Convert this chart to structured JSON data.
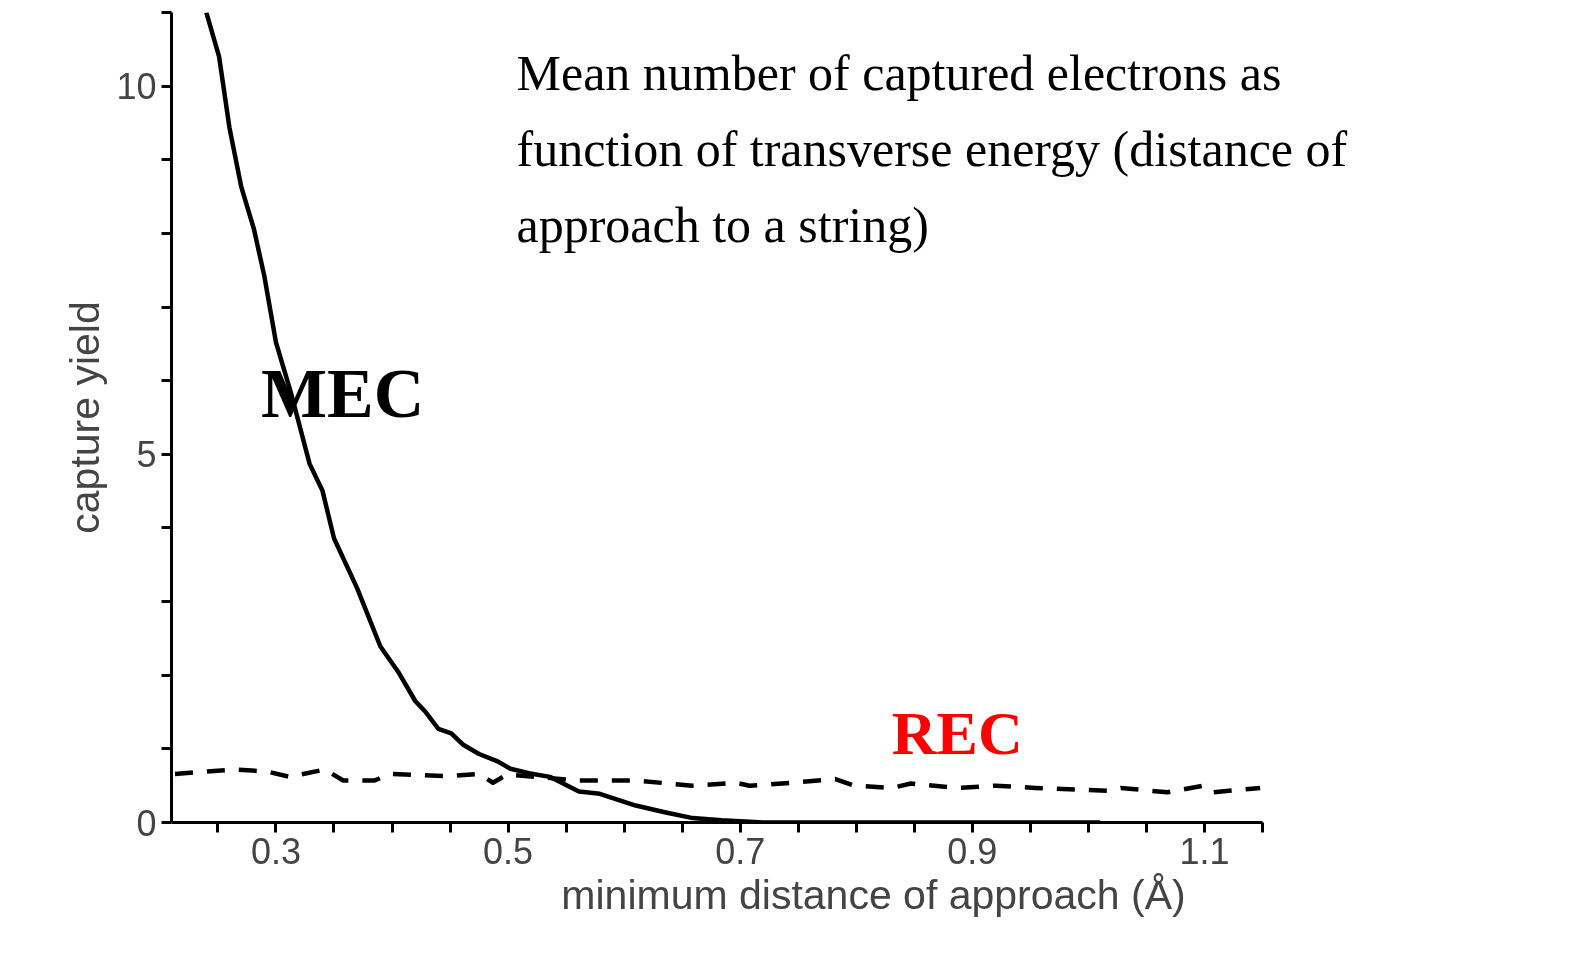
{
  "chart_data": {
    "type": "line",
    "title": "Mean number of captured electrons as function of transverse energy (distance of approach to a string)",
    "xlabel": "minimum distance of approach (Å)",
    "ylabel": "capture yield",
    "xlim": [
      0.21,
      1.15
    ],
    "ylim": [
      0,
      11
    ],
    "xticks": [
      {
        "value": 0.25,
        "label": null
      },
      0.3,
      {
        "value": 0.35,
        "label": null
      },
      {
        "value": 0.4,
        "label": null
      },
      {
        "value": 0.45,
        "label": null
      },
      0.5,
      {
        "value": 0.55,
        "label": null
      },
      {
        "value": 0.6,
        "label": null
      },
      {
        "value": 0.65,
        "label": null
      },
      0.7,
      {
        "value": 0.75,
        "label": null
      },
      {
        "value": 0.8,
        "label": null
      },
      {
        "value": 0.85,
        "label": null
      },
      0.9,
      {
        "value": 0.95,
        "label": null
      },
      {
        "value": 1.0,
        "label": null
      },
      {
        "value": 1.05,
        "label": null
      },
      1.1,
      {
        "value": 1.15,
        "label": null
      }
    ],
    "yticks": [
      0,
      {
        "value": 1,
        "label": null
      },
      {
        "value": 2,
        "label": null
      },
      {
        "value": 3,
        "label": null
      },
      {
        "value": 4,
        "label": null
      },
      5,
      {
        "value": 6,
        "label": null
      },
      {
        "value": 7,
        "label": null
      },
      {
        "value": 8,
        "label": null
      },
      {
        "value": 9,
        "label": null
      },
      10,
      {
        "value": 11,
        "label": null
      }
    ],
    "grid": false,
    "series": [
      {
        "name": "MEC",
        "color": "#000000",
        "line_style": "solid",
        "x": [
          0.24,
          0.251,
          0.26,
          0.27,
          0.281,
          0.29,
          0.3,
          0.313,
          0.329,
          0.34,
          0.35,
          0.37,
          0.39,
          0.406,
          0.42,
          0.429,
          0.44,
          0.451,
          0.461,
          0.475,
          0.491,
          0.502,
          0.518,
          0.536,
          0.561,
          0.579,
          0.61,
          0.635,
          0.659,
          0.684,
          0.72,
          1.01
        ],
        "values": [
          11.0,
          10.4,
          9.43,
          8.64,
          8.06,
          7.42,
          6.52,
          5.83,
          4.87,
          4.51,
          3.86,
          3.18,
          2.39,
          2.03,
          1.65,
          1.5,
          1.27,
          1.21,
          1.06,
          0.93,
          0.83,
          0.73,
          0.67,
          0.62,
          0.42,
          0.39,
          0.23,
          0.14,
          0.06,
          0.03,
          0.0,
          0.0
        ]
      },
      {
        "name": "REC",
        "color": "#000000",
        "line_style": "dashed",
        "x": [
          0.213,
          0.266,
          0.293,
          0.312,
          0.342,
          0.358,
          0.385,
          0.398,
          0.447,
          0.475,
          0.487,
          0.499,
          0.524,
          0.561,
          0.61,
          0.659,
          0.696,
          0.708,
          0.745,
          0.782,
          0.798,
          0.831,
          0.847,
          0.887,
          0.92,
          0.954,
          1.016,
          1.028,
          1.068,
          1.099,
          1.108,
          1.148
        ],
        "values": [
          0.66,
          0.72,
          0.69,
          0.62,
          0.72,
          0.57,
          0.57,
          0.66,
          0.63,
          0.66,
          0.54,
          0.65,
          0.62,
          0.57,
          0.57,
          0.5,
          0.54,
          0.5,
          0.54,
          0.59,
          0.5,
          0.47,
          0.53,
          0.47,
          0.5,
          0.47,
          0.43,
          0.47,
          0.41,
          0.5,
          0.41,
          0.47
        ]
      }
    ]
  }
}
